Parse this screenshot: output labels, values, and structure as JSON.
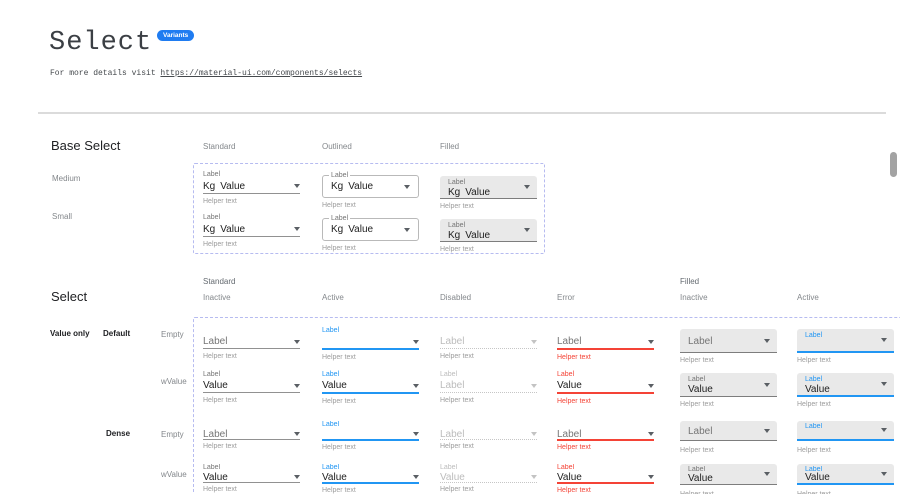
{
  "page": {
    "title": "Select",
    "badge": "Variants",
    "subtitle_prefix": "For more details visit ",
    "subtitle_link": "https://material-ui.com/components/selects"
  },
  "colors": {
    "accent": "#2196f3",
    "error": "#f44336",
    "badge": "#1f7cf1",
    "filled_bg": "#e9e9e9",
    "frame_dashed": "#b6bbf0"
  },
  "base_select": {
    "heading": "Base Select",
    "column_headers": [
      "Standard",
      "Outlined",
      "Filled"
    ],
    "row_headers": [
      "Medium",
      "Small"
    ],
    "cells": {
      "label": "Label",
      "adornment": "Kg",
      "value": "Value",
      "helper": "Helper text"
    }
  },
  "select": {
    "heading": "Select",
    "group_headers": [
      "Standard",
      "Filled"
    ],
    "column_headers": [
      "Inactive",
      "Active",
      "Disabled",
      "Error",
      "Inactive",
      "Active"
    ],
    "row_labels": {
      "value_only": "Value only",
      "default": "Default",
      "dense": "Dense",
      "empty": "Empty",
      "wvalue": "wValue"
    },
    "rows": [
      {
        "name": "empty",
        "dense": false,
        "cells": [
          {
            "variant": "standard",
            "state": "inactive",
            "float_label": null,
            "display": "Label",
            "placeholder": true,
            "helper": "Helper text"
          },
          {
            "variant": "standard",
            "state": "active",
            "float_label": "Label",
            "display": "",
            "placeholder": false,
            "helper": "Helper text"
          },
          {
            "variant": "standard",
            "state": "disabled",
            "float_label": null,
            "display": "Label",
            "placeholder": true,
            "helper": "Helper text"
          },
          {
            "variant": "standard",
            "state": "error",
            "float_label": null,
            "display": "Label",
            "placeholder": true,
            "helper": "Helper text"
          },
          {
            "variant": "filled",
            "state": "inactive",
            "float_label": null,
            "display": "Label",
            "placeholder": true,
            "helper": "Helper text"
          },
          {
            "variant": "filled",
            "state": "active",
            "float_label": "Label",
            "display": "",
            "placeholder": false,
            "helper": "Helper text"
          }
        ]
      },
      {
        "name": "wValue",
        "dense": false,
        "cells": [
          {
            "variant": "standard",
            "state": "inactive",
            "float_label": "Label",
            "display": "Value",
            "placeholder": false,
            "helper": "Helper text"
          },
          {
            "variant": "standard",
            "state": "active",
            "float_label": "Label",
            "display": "Value",
            "placeholder": false,
            "helper": "Helper text"
          },
          {
            "variant": "standard",
            "state": "disabled",
            "float_label": "Label",
            "display": "Label",
            "placeholder": true,
            "helper": "Helper text"
          },
          {
            "variant": "standard",
            "state": "error",
            "float_label": "Label",
            "display": "Value",
            "placeholder": false,
            "helper": "Helper text"
          },
          {
            "variant": "filled",
            "state": "inactive",
            "float_label": "Label",
            "display": "Value",
            "placeholder": false,
            "helper": "Helper text"
          },
          {
            "variant": "filled",
            "state": "active",
            "float_label": "Label",
            "display": "Value",
            "placeholder": false,
            "helper": "Helper text"
          }
        ]
      },
      {
        "name": "dense-empty",
        "dense": true,
        "cells": [
          {
            "variant": "standard",
            "state": "inactive",
            "float_label": null,
            "display": "Label",
            "placeholder": true,
            "helper": "Helper text"
          },
          {
            "variant": "standard",
            "state": "active",
            "float_label": "Label",
            "display": "",
            "placeholder": false,
            "helper": "Helper text"
          },
          {
            "variant": "standard",
            "state": "disabled",
            "float_label": null,
            "display": "Label",
            "placeholder": true,
            "helper": "Helper text"
          },
          {
            "variant": "standard",
            "state": "error",
            "float_label": null,
            "display": "Label",
            "placeholder": true,
            "helper": "Helper text"
          },
          {
            "variant": "filled",
            "state": "inactive",
            "float_label": null,
            "display": "Label",
            "placeholder": true,
            "helper": "Helper text"
          },
          {
            "variant": "filled",
            "state": "active",
            "float_label": "Label",
            "display": "",
            "placeholder": false,
            "helper": "Helper text"
          }
        ]
      },
      {
        "name": "dense-wValue",
        "dense": true,
        "cells": [
          {
            "variant": "standard",
            "state": "inactive",
            "float_label": "Label",
            "display": "Value",
            "placeholder": false,
            "helper": "Helper text"
          },
          {
            "variant": "standard",
            "state": "active",
            "float_label": "Label",
            "display": "Value",
            "placeholder": false,
            "helper": "Helper text"
          },
          {
            "variant": "standard",
            "state": "disabled",
            "float_label": "Label",
            "display": "Value",
            "placeholder": true,
            "helper": "Helper text"
          },
          {
            "variant": "standard",
            "state": "error",
            "float_label": "Label",
            "display": "Value",
            "placeholder": false,
            "helper": "Helper text"
          },
          {
            "variant": "filled",
            "state": "inactive",
            "float_label": "Label",
            "display": "Value",
            "placeholder": false,
            "helper": "Helper text"
          },
          {
            "variant": "filled",
            "state": "active",
            "float_label": "Label",
            "display": "Value",
            "placeholder": false,
            "helper": "Helper text"
          }
        ]
      }
    ]
  }
}
